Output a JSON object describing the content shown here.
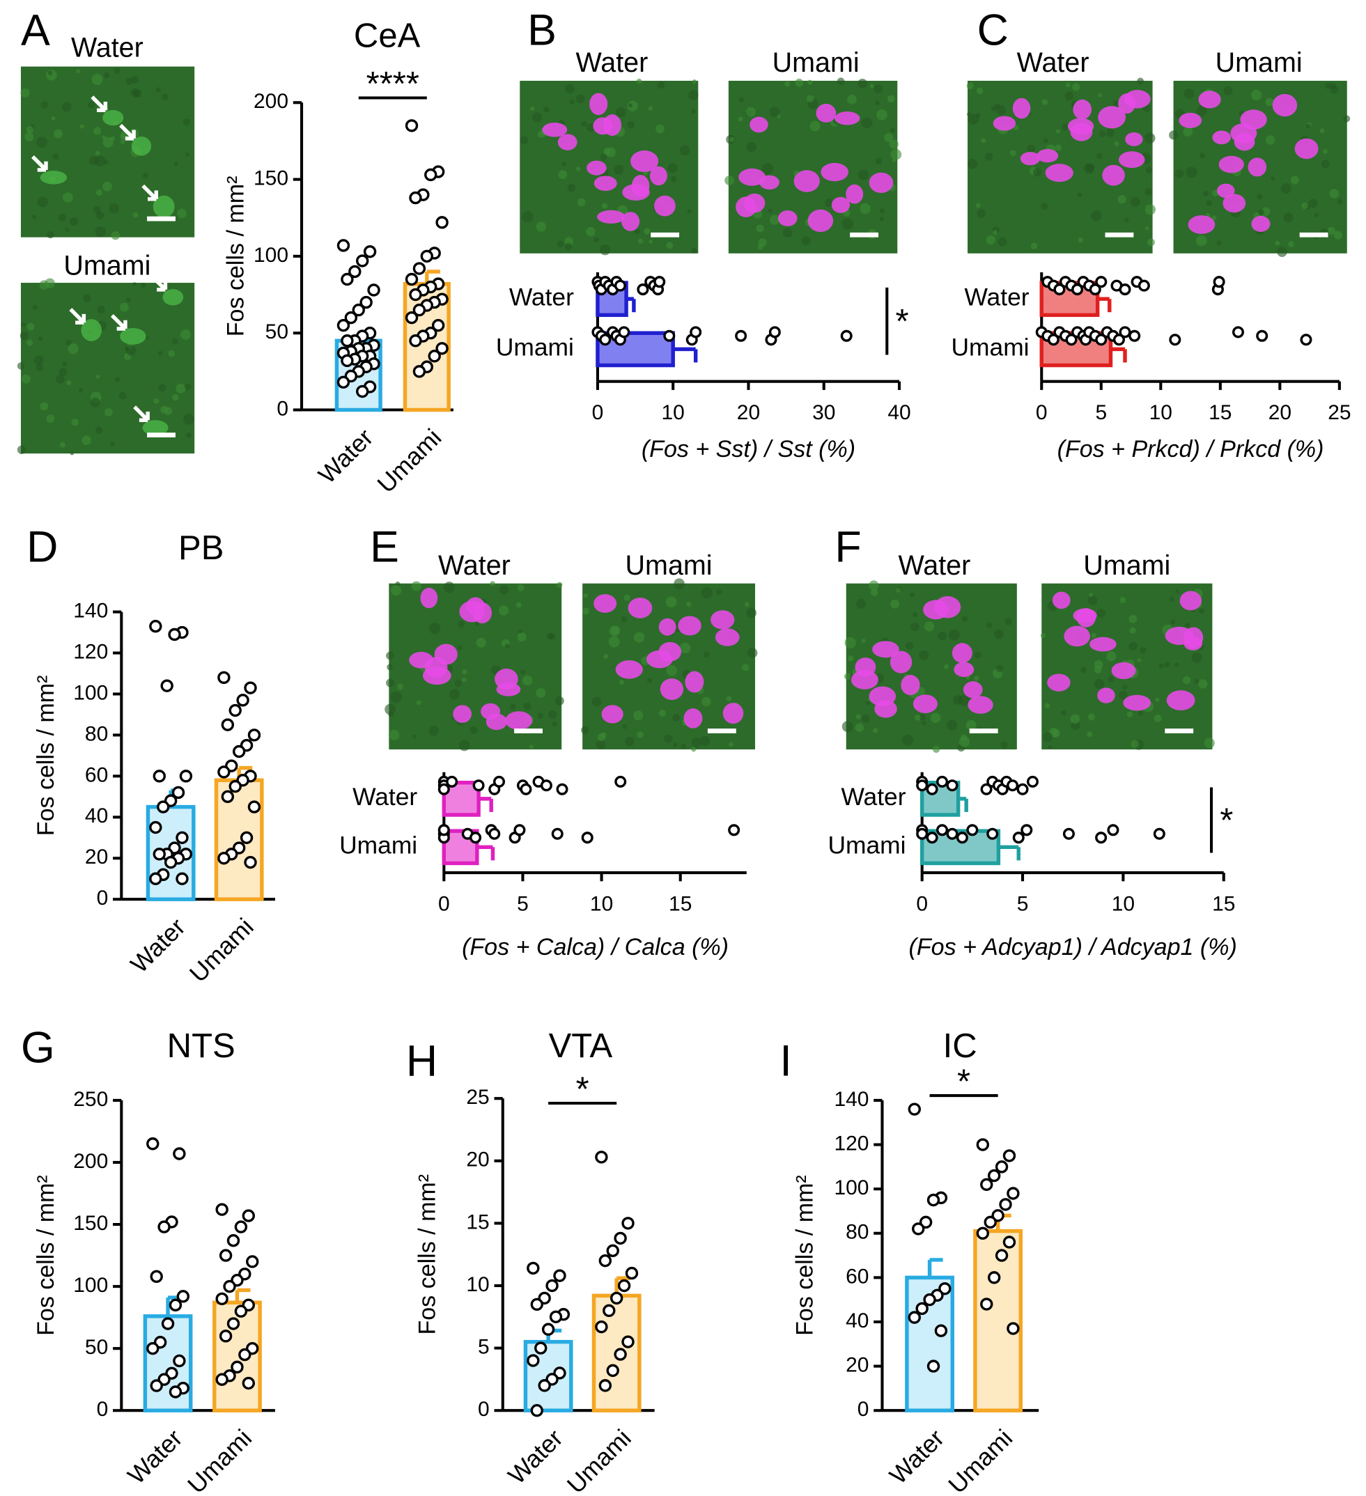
{
  "chart_data": [
    {
      "type": "bar",
      "panel": "A",
      "title": "CeA",
      "ylabel": "Fos cells / mm²",
      "image_labels": [
        "Water",
        "Umami"
      ],
      "categories": [
        "Water",
        "Umami"
      ],
      "values": [
        45,
        82
      ],
      "errors": [
        5,
        8
      ],
      "points": [
        [
          107,
          103,
          97,
          90,
          85,
          78,
          70,
          65,
          60,
          55,
          50,
          48,
          45,
          45,
          42,
          40,
          40,
          38,
          37,
          35,
          35,
          33,
          32,
          30,
          28,
          25,
          22,
          18,
          15,
          12
        ],
        [
          185,
          155,
          153,
          140,
          138,
          122,
          102,
          100,
          92,
          85,
          82,
          80,
          78,
          75,
          72,
          70,
          68,
          65,
          60,
          55,
          50,
          48,
          45,
          40,
          35,
          28,
          25
        ]
      ],
      "colors": [
        "#29abe2",
        "#f5a623"
      ],
      "fill_colors": [
        "#cdeefb",
        "#fde9c2"
      ],
      "ylim": [
        0,
        200
      ],
      "yticks": [
        0,
        50,
        100,
        150,
        200
      ],
      "significance": "****"
    },
    {
      "type": "hbar",
      "panel": "B",
      "xlabel": "(Fos + Sst) / Sst (%)",
      "image_labels": [
        "Water",
        "Umami"
      ],
      "categories": [
        "Water",
        "Umami"
      ],
      "values": [
        3.8,
        10
      ],
      "errors": [
        1,
        3
      ],
      "points": [
        [
          0,
          0.2,
          0.5,
          1,
          1.5,
          2,
          2.5,
          3,
          6,
          7,
          7.5,
          8,
          8.2
        ],
        [
          0,
          0.5,
          1,
          2,
          2.5,
          3,
          3.5,
          9.5,
          12.5,
          13,
          19,
          23,
          23.5,
          33
        ]
      ],
      "color": "#2020d0",
      "fill_color": "#8080f0",
      "xlim": [
        0,
        40
      ],
      "xticks": [
        0,
        10,
        20,
        30,
        40
      ],
      "significance": "*"
    },
    {
      "type": "hbar",
      "panel": "C",
      "xlabel": "(Fos + Prkcd) / Prkcd (%)",
      "image_labels": [
        "Water",
        "Umami"
      ],
      "categories": [
        "Water",
        "Umami"
      ],
      "values": [
        4.7,
        5.8
      ],
      "errors": [
        1,
        1.2
      ],
      "points": [
        [
          0.5,
          1,
          1.5,
          2,
          2.5,
          3,
          3.5,
          4,
          4.5,
          5,
          6.3,
          7,
          8,
          8.6,
          14.8,
          14.9
        ],
        [
          0,
          0.5,
          1,
          1.5,
          2,
          2.5,
          3,
          3.5,
          3.7,
          4,
          4.5,
          5,
          5.5,
          6,
          6.5,
          7,
          7.8,
          11.2,
          16.5,
          18.5,
          22.2
        ]
      ],
      "color": "#e02020",
      "fill_color": "#f08080",
      "xlim": [
        0,
        25
      ],
      "xticks": [
        0,
        5,
        10,
        15,
        20,
        25
      ]
    },
    {
      "type": "bar",
      "panel": "D",
      "title": "PB",
      "ylabel": "Fos cells / mm²",
      "categories": [
        "Water",
        "Umami"
      ],
      "values": [
        45,
        58
      ],
      "errors": [
        8,
        6
      ],
      "points": [
        [
          133,
          130,
          129,
          104,
          60,
          60,
          52,
          48,
          45,
          35,
          30,
          25,
          22,
          22,
          22,
          20,
          18,
          12,
          10,
          10
        ],
        [
          108,
          103,
          97,
          92,
          85,
          80,
          75,
          72,
          65,
          62,
          60,
          58,
          55,
          50,
          45,
          30,
          25,
          22,
          20,
          18
        ]
      ],
      "colors": [
        "#29abe2",
        "#f5a623"
      ],
      "fill_colors": [
        "#cdeefb",
        "#fde9c2"
      ],
      "ylim": [
        0,
        140
      ],
      "yticks": [
        0,
        20,
        40,
        60,
        80,
        100,
        120,
        140
      ]
    },
    {
      "type": "hbar",
      "panel": "E",
      "xlabel": "(Fos + Calca) / Calca (%)",
      "image_labels": [
        "Water",
        "Umami"
      ],
      "categories": [
        "Water",
        "Umami"
      ],
      "values": [
        2.2,
        2.1
      ],
      "errors": [
        0.8,
        1
      ],
      "points": [
        [
          0,
          0,
          0,
          0.5,
          2.2,
          3.2,
          3.5,
          5,
          5.2,
          6,
          6.5,
          7.5,
          11.2
        ],
        [
          0,
          0,
          0,
          0,
          1.5,
          2,
          3,
          3.2,
          4.5,
          4.8,
          7.2,
          9.1,
          18.4
        ]
      ],
      "color": "#e020c0",
      "fill_color": "#f080e0",
      "xlim": [
        0,
        19.2
      ],
      "xticks": [
        0,
        5,
        10,
        15
      ]
    },
    {
      "type": "hbar",
      "panel": "F",
      "xlabel": "(Fos + Adcyap1) / Adcyap1 (%)",
      "image_labels": [
        "Water",
        "Umami"
      ],
      "categories": [
        "Water",
        "Umami"
      ],
      "values": [
        1.8,
        3.8
      ],
      "errors": [
        0.4,
        1
      ],
      "points": [
        [
          0,
          0,
          0.5,
          1,
          1.5,
          3.2,
          3.5,
          3.8,
          4,
          4.2,
          4.5,
          5,
          5.5
        ],
        [
          0,
          0,
          0.5,
          1,
          1.5,
          2,
          2.5,
          3.5,
          4.8,
          5.2,
          7.3,
          8.9,
          9.5,
          11.8
        ]
      ],
      "color": "#20a0a0",
      "fill_color": "#80c8c8",
      "xlim": [
        0,
        15
      ],
      "xticks": [
        0,
        5,
        10,
        15
      ],
      "significance": "*"
    },
    {
      "type": "bar",
      "panel": "G",
      "title": "NTS",
      "ylabel": "Fos cells / mm²",
      "categories": [
        "Water",
        "Umami"
      ],
      "values": [
        76,
        87
      ],
      "errors": [
        15,
        10
      ],
      "points": [
        [
          215,
          207,
          152,
          148,
          108,
          92,
          85,
          70,
          55,
          50,
          40,
          30,
          25,
          20,
          18,
          15
        ],
        [
          162,
          157,
          148,
          137,
          125,
          120,
          110,
          105,
          100,
          90,
          85,
          80,
          70,
          60,
          50,
          45,
          35,
          28,
          25,
          22
        ]
      ],
      "colors": [
        "#29abe2",
        "#f5a623"
      ],
      "fill_colors": [
        "#cdeefb",
        "#fde9c2"
      ],
      "ylim": [
        0,
        250
      ],
      "yticks": [
        0,
        50,
        100,
        150,
        200,
        250
      ]
    },
    {
      "type": "bar",
      "panel": "H",
      "title": "VTA",
      "ylabel": "Fos cells / mm²",
      "categories": [
        "Water",
        "Umami"
      ],
      "values": [
        5.5,
        9.2
      ],
      "errors": [
        0.9,
        1.4
      ],
      "points": [
        [
          11.4,
          10.8,
          10,
          9,
          8.5,
          7.7,
          7.5,
          6.5,
          5,
          4,
          3,
          2.5,
          2,
          0
        ],
        [
          20.3,
          15,
          13.8,
          12.8,
          12,
          11,
          10,
          9,
          8,
          6.7,
          5.5,
          4.5,
          3.2,
          2
        ]
      ],
      "colors": [
        "#29abe2",
        "#f5a623"
      ],
      "fill_colors": [
        "#cdeefb",
        "#fde9c2"
      ],
      "ylim": [
        0,
        25
      ],
      "yticks": [
        0,
        5,
        10,
        15,
        20,
        25
      ],
      "significance": "*"
    },
    {
      "type": "bar",
      "panel": "I",
      "title": "IC",
      "ylabel": "Fos cells / mm²",
      "categories": [
        "Water",
        "Umami"
      ],
      "values": [
        60,
        81
      ],
      "errors": [
        8,
        7
      ],
      "points": [
        [
          136,
          96,
          95,
          85,
          82,
          55,
          52,
          50,
          46,
          42,
          36,
          20
        ],
        [
          120,
          115,
          110,
          106,
          102,
          98,
          93,
          88,
          85,
          80,
          76,
          70,
          60,
          48,
          37
        ]
      ],
      "colors": [
        "#29abe2",
        "#f5a623"
      ],
      "fill_colors": [
        "#cdeefb",
        "#fde9c2"
      ],
      "ylim": [
        0,
        140
      ],
      "yticks": [
        0,
        20,
        40,
        60,
        80,
        100,
        120,
        140
      ],
      "significance": "*"
    }
  ]
}
